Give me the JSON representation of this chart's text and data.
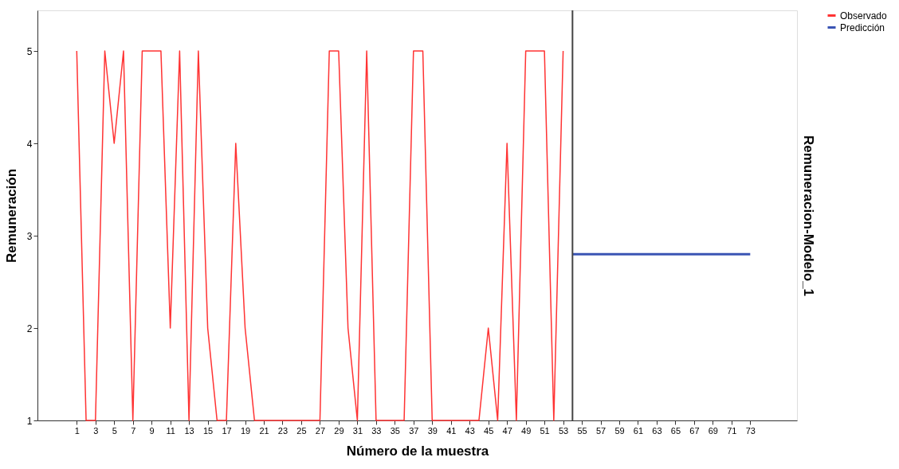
{
  "chart_data": {
    "type": "line",
    "xlabel": "Número de la muestra",
    "ylabel": "Remuneración",
    "y2label": "Remuneracion-Modelo_1",
    "xlim": [
      -3.2,
      78
    ],
    "xticks": [
      1,
      3,
      5,
      7,
      9,
      11,
      13,
      15,
      17,
      19,
      21,
      23,
      25,
      27,
      29,
      31,
      33,
      35,
      37,
      39,
      41,
      43,
      45,
      47,
      49,
      51,
      53,
      55,
      57,
      59,
      61,
      63,
      65,
      67,
      69,
      71,
      73
    ],
    "ylim": [
      1,
      5.44
    ],
    "yticks": [
      1,
      2,
      3,
      4,
      5
    ],
    "grid": false,
    "legend": "top right",
    "marker": "none",
    "line_style": "solid",
    "series": [
      {
        "name": "Observado",
        "color": "#ff3333",
        "x": [
          1,
          2,
          3,
          4,
          5,
          6,
          7,
          8,
          9,
          10,
          11,
          12,
          13,
          14,
          15,
          16,
          17,
          18,
          19,
          20,
          21,
          22,
          23,
          24,
          25,
          26,
          27,
          28,
          29,
          30,
          31,
          32,
          33,
          34,
          35,
          36,
          37,
          38,
          39,
          40,
          41,
          42,
          43,
          44,
          45,
          46,
          47,
          48,
          49,
          50,
          51,
          52,
          53
        ],
        "values": [
          5,
          1,
          1,
          5,
          4,
          5,
          1,
          5,
          5,
          5,
          2,
          5,
          1,
          5,
          2,
          1,
          1,
          4,
          2,
          1,
          1,
          1,
          1,
          1,
          1,
          1,
          1,
          5,
          5,
          2,
          1,
          5,
          1,
          1,
          1,
          1,
          5,
          5,
          1,
          1,
          1,
          1,
          1,
          1,
          2,
          1,
          4,
          1,
          5,
          5,
          5,
          1,
          5
        ]
      },
      {
        "name": "Predicción",
        "color": "#3a54b4",
        "x": [
          54,
          55,
          56,
          57,
          58,
          59,
          60,
          61,
          62,
          63,
          64,
          65,
          66,
          67,
          68,
          69,
          70,
          71,
          72,
          73
        ],
        "values": [
          2.8,
          2.8,
          2.8,
          2.8,
          2.8,
          2.8,
          2.8,
          2.8,
          2.8,
          2.8,
          2.8,
          2.8,
          2.8,
          2.8,
          2.8,
          2.8,
          2.8,
          2.8,
          2.8,
          2.8
        ]
      }
    ],
    "ref_lines": [
      {
        "axis": "x",
        "value": 54,
        "color": "#444444"
      }
    ]
  }
}
